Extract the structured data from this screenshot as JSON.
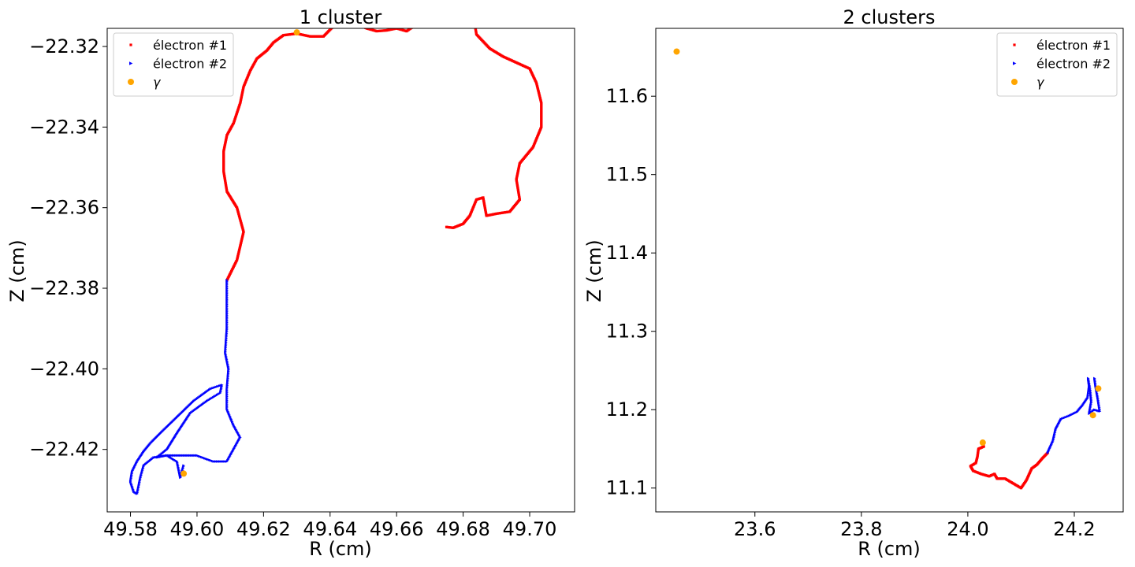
{
  "figure": {
    "background": "#ffffff"
  },
  "colors": {
    "electron1": "#ff0000",
    "electron2": "#0000ff",
    "gamma": "#ffa500"
  },
  "chart_data": [
    {
      "type": "scatter",
      "title": "1 cluster",
      "xlabel": "R (cm)",
      "ylabel": "Z (cm)",
      "xlim": [
        49.573,
        49.7135
      ],
      "ylim": [
        -22.4355,
        -22.3155
      ],
      "xticks": [
        49.58,
        49.6,
        49.62,
        49.64,
        49.66,
        49.68,
        49.7
      ],
      "xticklabels": [
        "49.58",
        "49.60",
        "49.62",
        "49.64",
        "49.66",
        "49.68",
        "49.70"
      ],
      "yticks": [
        -22.42,
        -22.4,
        -22.38,
        -22.36,
        -22.34,
        -22.32
      ],
      "yticklabels": [
        "−22.42",
        "−22.40",
        "−22.38",
        "−22.36",
        "−22.34",
        "−22.32"
      ],
      "legend": {
        "location": "upper-left",
        "entries": [
          "électron #1",
          "électron #2",
          "γ"
        ]
      },
      "grid": false,
      "series": [
        {
          "name": "électron #1",
          "marker": "square",
          "color": "#ff0000",
          "points": [
            [
              49.609,
              -22.378
            ],
            [
              49.612,
              -22.373
            ],
            [
              49.614,
              -22.366
            ],
            [
              49.612,
              -22.36
            ],
            [
              49.609,
              -22.356
            ],
            [
              49.608,
              -22.351
            ],
            [
              49.608,
              -22.346
            ],
            [
              49.609,
              -22.342
            ],
            [
              49.611,
              -22.339
            ],
            [
              49.613,
              -22.334
            ],
            [
              49.614,
              -22.33
            ],
            [
              49.616,
              -22.326
            ],
            [
              49.618,
              -22.323
            ],
            [
              49.621,
              -22.321
            ],
            [
              49.623,
              -22.319
            ],
            [
              49.626,
              -22.3172
            ],
            [
              49.63,
              -22.3168
            ],
            [
              49.634,
              -22.3175
            ],
            [
              49.638,
              -22.3175
            ],
            [
              49.641,
              -22.315
            ],
            [
              49.644,
              -22.3145
            ],
            [
              49.648,
              -22.3145
            ],
            [
              49.651,
              -22.3155
            ],
            [
              49.654,
              -22.3162
            ],
            [
              49.657,
              -22.316
            ],
            [
              49.66,
              -22.3155
            ],
            [
              49.663,
              -22.3162
            ],
            [
              49.666,
              -22.3145
            ],
            [
              49.669,
              -22.3125
            ],
            [
              49.672,
              -22.311
            ],
            [
              49.675,
              -22.31
            ],
            [
              49.678,
              -22.309
            ],
            [
              49.681,
              -22.309
            ],
            [
              49.683,
              -22.312
            ],
            [
              49.684,
              -22.317
            ],
            [
              49.688,
              -22.3205
            ],
            [
              49.692,
              -22.3225
            ],
            [
              49.696,
              -22.324
            ],
            [
              49.7,
              -22.3255
            ],
            [
              49.702,
              -22.329
            ],
            [
              49.7035,
              -22.334
            ],
            [
              49.7035,
              -22.34
            ],
            [
              49.701,
              -22.345
            ],
            [
              49.697,
              -22.349
            ],
            [
              49.696,
              -22.353
            ],
            [
              49.697,
              -22.358
            ],
            [
              49.694,
              -22.361
            ],
            [
              49.69,
              -22.3615
            ],
            [
              49.687,
              -22.362
            ],
            [
              49.686,
              -22.3575
            ],
            [
              49.684,
              -22.358
            ],
            [
              49.682,
              -22.362
            ],
            [
              49.68,
              -22.364
            ],
            [
              49.677,
              -22.365
            ],
            [
              49.675,
              -22.3648
            ]
          ]
        },
        {
          "name": "électron #2",
          "marker": "triangle-right",
          "color": "#0000ff",
          "points": [
            [
              49.609,
              -22.378
            ],
            [
              49.609,
              -22.384
            ],
            [
              49.609,
              -22.39
            ],
            [
              49.6085,
              -22.396
            ],
            [
              49.6095,
              -22.4
            ],
            [
              49.609,
              -22.405
            ],
            [
              49.609,
              -22.41
            ],
            [
              49.611,
              -22.414
            ],
            [
              49.613,
              -22.417
            ],
            [
              49.611,
              -22.42
            ],
            [
              49.609,
              -22.423
            ],
            [
              49.605,
              -22.423
            ],
            [
              49.6,
              -22.4215
            ],
            [
              49.595,
              -22.4215
            ],
            [
              49.591,
              -22.4215
            ],
            [
              49.588,
              -22.422
            ],
            [
              49.591,
              -22.42
            ],
            [
              49.594,
              -22.416
            ],
            [
              49.598,
              -22.411
            ],
            [
              49.603,
              -22.408
            ],
            [
              49.607,
              -22.406
            ],
            [
              49.6075,
              -22.404
            ],
            [
              49.604,
              -22.405
            ],
            [
              49.599,
              -22.408
            ],
            [
              49.594,
              -22.412
            ],
            [
              49.589,
              -22.416
            ],
            [
              49.586,
              -22.4185
            ],
            [
              49.584,
              -22.4205
            ],
            [
              49.582,
              -22.423
            ],
            [
              49.5805,
              -22.4255
            ],
            [
              49.58,
              -22.428
            ],
            [
              49.581,
              -22.4305
            ],
            [
              49.582,
              -22.431
            ],
            [
              49.583,
              -22.427
            ],
            [
              49.584,
              -22.424
            ],
            [
              49.587,
              -22.422
            ],
            [
              49.591,
              -22.4215
            ],
            [
              49.594,
              -22.423
            ],
            [
              49.595,
              -22.427
            ],
            [
              49.596,
              -22.424
            ]
          ]
        },
        {
          "name": "γ",
          "marker": "circle",
          "color": "#ffa500",
          "points": [
            [
              49.63,
              -22.3165
            ],
            [
              49.596,
              -22.426
            ]
          ]
        }
      ]
    },
    {
      "type": "scatter",
      "title": "2 clusters",
      "xlabel": "R (cm)",
      "ylabel": "Z (cm)",
      "xlim": [
        23.4138,
        24.2918
      ],
      "ylim": [
        11.0696,
        11.6866
      ],
      "xticks": [
        23.6,
        23.8,
        24.0,
        24.2
      ],
      "xticklabels": [
        "23.6",
        "23.8",
        "24.0",
        "24.2"
      ],
      "yticks": [
        11.1,
        11.2,
        11.3,
        11.4,
        11.5,
        11.6
      ],
      "yticklabels": [
        "11.1",
        "11.2",
        "11.3",
        "11.4",
        "11.5",
        "11.6"
      ],
      "legend": {
        "location": "upper-right",
        "entries": [
          "électron #1",
          "électron #2",
          "γ"
        ]
      },
      "grid": false,
      "series": [
        {
          "name": "électron #1",
          "marker": "square",
          "color": "#ff0000",
          "points": [
            [
              24.03,
              11.153
            ],
            [
              24.02,
              11.15
            ],
            [
              24.018,
              11.14
            ],
            [
              24.015,
              11.132
            ],
            [
              24.005,
              11.128
            ],
            [
              24.01,
              11.122
            ],
            [
              24.025,
              11.118
            ],
            [
              24.04,
              11.115
            ],
            [
              24.05,
              11.118
            ],
            [
              24.055,
              11.112
            ],
            [
              24.07,
              11.112
            ],
            [
              24.08,
              11.108
            ],
            [
              24.09,
              11.104
            ],
            [
              24.1,
              11.1
            ],
            [
              24.11,
              11.11
            ],
            [
              24.12,
              11.125
            ],
            [
              24.13,
              11.13
            ],
            [
              24.14,
              11.138
            ],
            [
              24.15,
              11.145
            ]
          ]
        },
        {
          "name": "électron #2",
          "marker": "triangle-right",
          "color": "#0000ff",
          "points": [
            [
              24.15,
              11.145
            ],
            [
              24.16,
              11.16
            ],
            [
              24.165,
              11.175
            ],
            [
              24.175,
              11.188
            ],
            [
              24.19,
              11.192
            ],
            [
              24.205,
              11.197
            ],
            [
              24.215,
              11.205
            ],
            [
              24.225,
              11.215
            ],
            [
              24.228,
              11.23
            ],
            [
              24.226,
              11.24
            ],
            [
              24.23,
              11.225
            ],
            [
              24.232,
              11.21
            ],
            [
              24.228,
              11.195
            ],
            [
              24.238,
              11.2
            ],
            [
              24.248,
              11.198
            ],
            [
              24.244,
              11.215
            ],
            [
              24.24,
              11.23
            ],
            [
              24.238,
              11.24
            ]
          ]
        },
        {
          "name": "γ",
          "marker": "circle",
          "color": "#ffa500",
          "points": [
            [
              23.453,
              11.657
            ],
            [
              24.028,
              11.158
            ],
            [
              24.235,
              11.193
            ],
            [
              24.245,
              11.227
            ]
          ]
        }
      ]
    }
  ]
}
